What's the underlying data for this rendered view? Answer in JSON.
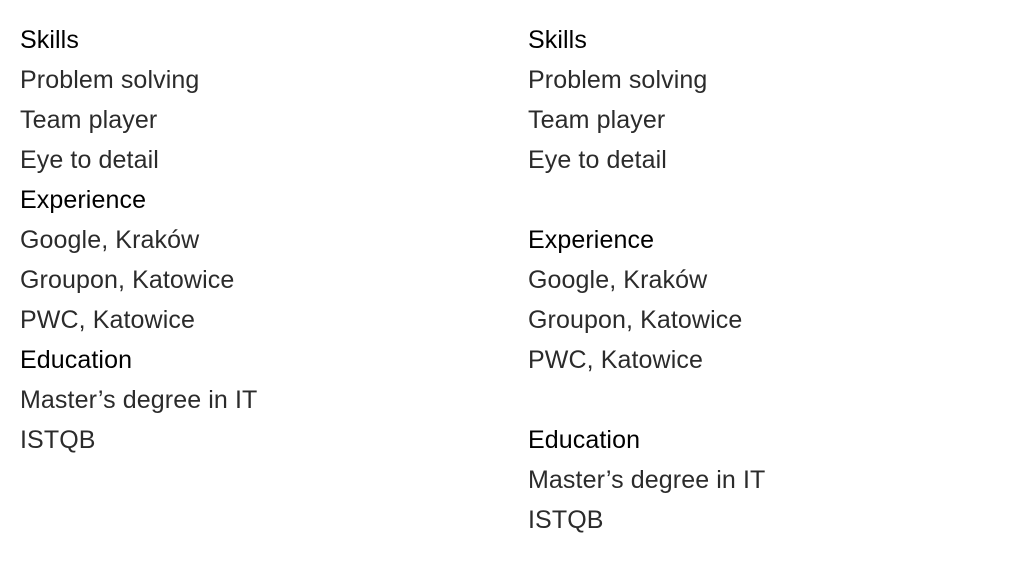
{
  "left_column": {
    "skills_heading": "Skills",
    "skills": [
      "Problem solving",
      "Team player",
      "Eye to detail"
    ],
    "experience_heading": "Experience",
    "experience": [
      "Google, Kraków",
      "Groupon, Katowice",
      "PWC, Katowice"
    ],
    "education_heading": "Education",
    "education": [
      "Master’s degree in IT",
      "ISTQB"
    ]
  },
  "right_column": {
    "skills_heading": "Skills",
    "skills": [
      "Problem solving",
      "Team player",
      "Eye to detail"
    ],
    "experience_heading": "Experience",
    "experience": [
      "Google, Kraków",
      "Groupon, Katowice",
      "PWC, Katowice"
    ],
    "education_heading": "Education",
    "education": [
      "Master’s degree in IT",
      "ISTQB"
    ]
  }
}
